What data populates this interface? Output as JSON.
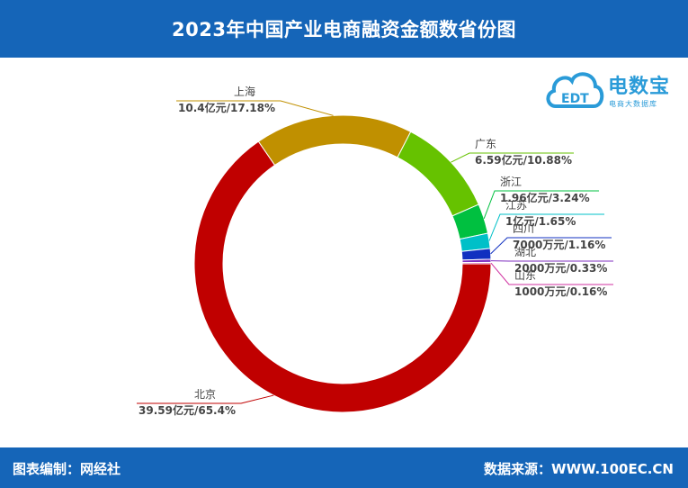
{
  "header": {
    "title": "2023年中国产业电商融资金额数省份图"
  },
  "footer": {
    "left": "图表编制：网经社",
    "right": "数据来源：WWW.100EC.CN"
  },
  "logo": {
    "text": "电数宝",
    "sub": "电商大数据库",
    "mark": "EDT"
  },
  "colors": {
    "header_bg": "#1565b8",
    "logo": "#2a9bd8"
  },
  "chart_data": {
    "type": "pie",
    "title": "2023年中国产业电商融资金额数省份图",
    "slices": [
      {
        "name": "北京",
        "value_label": "39.59亿元/65.4%",
        "percent": 65.4,
        "color": "#c00000"
      },
      {
        "name": "上海",
        "value_label": "10.4亿元/17.18%",
        "percent": 17.18,
        "color": "#c09000"
      },
      {
        "name": "广东",
        "value_label": "6.59亿元/10.88%",
        "percent": 10.88,
        "color": "#66c200"
      },
      {
        "name": "浙江",
        "value_label": "1.96亿元/3.24%",
        "percent": 3.24,
        "color": "#00c040"
      },
      {
        "name": "江苏",
        "value_label": "1亿元/1.65%",
        "percent": 1.65,
        "color": "#00c0c8"
      },
      {
        "name": "四川",
        "value_label": "7000万元/1.16%",
        "percent": 1.16,
        "color": "#1030c0"
      },
      {
        "name": "湖北",
        "value_label": "2000万元/0.33%",
        "percent": 0.33,
        "color": "#8030c0"
      },
      {
        "name": "山东",
        "value_label": "1000万元/0.16%",
        "percent": 0.16,
        "color": "#d030a0"
      }
    ]
  }
}
